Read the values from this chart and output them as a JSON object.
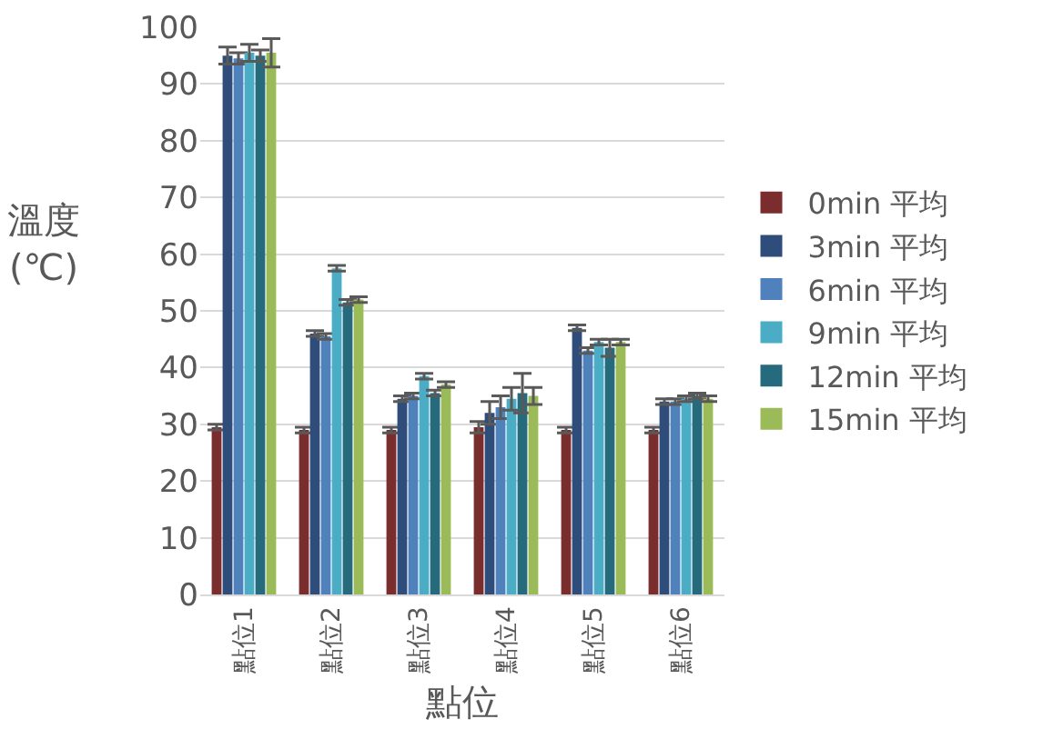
{
  "chart_data": {
    "type": "bar",
    "xlabel": "點位",
    "ylabel": "溫度\n(℃)",
    "categories": [
      "點位1",
      "點位2",
      "點位3",
      "點位4",
      "點位5",
      "點位6"
    ],
    "series": [
      {
        "name": "0min 平均",
        "color": "#7b2c2c",
        "values": [
          29.5,
          29,
          29,
          29.5,
          29,
          29
        ],
        "errors": [
          0.5,
          0.5,
          0.5,
          1,
          0.5,
          0.5
        ]
      },
      {
        "name": "3min 平均",
        "color": "#2e4d7b",
        "values": [
          95,
          46,
          34.5,
          32,
          47,
          34
        ],
        "errors": [
          1.5,
          0.5,
          0.5,
          2,
          0.5,
          0.5
        ]
      },
      {
        "name": "6min 平均",
        "color": "#4f81bd",
        "values": [
          94.5,
          45.5,
          35,
          33,
          43,
          34
        ],
        "errors": [
          1,
          0.5,
          0.5,
          2,
          0.5,
          0.5
        ]
      },
      {
        "name": "9min 平均",
        "color": "#4bacc6",
        "values": [
          95.5,
          57.5,
          38.5,
          34.5,
          44.5,
          34.5
        ],
        "errors": [
          1.5,
          0.5,
          0.5,
          2,
          0.5,
          0.5
        ]
      },
      {
        "name": "12min 平均",
        "color": "#256b7d",
        "values": [
          95,
          51.5,
          35.5,
          35.5,
          43.5,
          35
        ],
        "errors": [
          1,
          0.5,
          0.5,
          3.5,
          1.5,
          0.5
        ]
      },
      {
        "name": "15min 平均",
        "color": "#9bbb59",
        "values": [
          95.5,
          52,
          37,
          35,
          44.5,
          34.5
        ],
        "errors": [
          2.5,
          0.5,
          0.5,
          1.5,
          0.5,
          0.5
        ]
      }
    ],
    "ylim": [
      0,
      100
    ],
    "yticks": [
      0,
      10,
      20,
      30,
      40,
      50,
      60,
      70,
      80,
      90,
      100
    ],
    "grid": "y",
    "legend": "right"
  }
}
